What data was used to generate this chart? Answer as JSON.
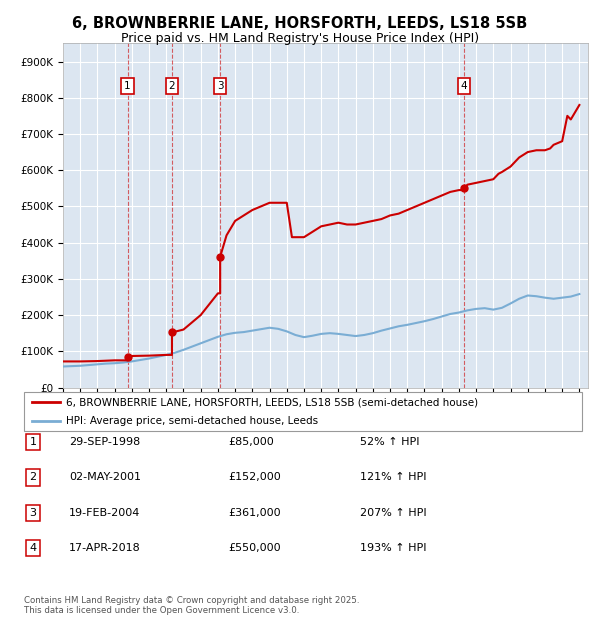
{
  "title": "6, BROWNBERRIE LANE, HORSFORTH, LEEDS, LS18 5SB",
  "subtitle": "Price paid vs. HM Land Registry's House Price Index (HPI)",
  "title_fontsize": 10.5,
  "subtitle_fontsize": 9,
  "ylim": [
    0,
    950000
  ],
  "yticks": [
    0,
    100000,
    200000,
    300000,
    400000,
    500000,
    600000,
    700000,
    800000,
    900000
  ],
  "ytick_labels": [
    "£0",
    "£100K",
    "£200K",
    "£300K",
    "£400K",
    "£500K",
    "£600K",
    "£700K",
    "£800K",
    "£900K"
  ],
  "xlim_start": 1995.0,
  "xlim_end": 2025.5,
  "plot_bg_color": "#dce6f1",
  "grid_color": "#ffffff",
  "sale_points": [
    {
      "year": 1998.75,
      "price": 85000,
      "label": "1"
    },
    {
      "year": 2001.33,
      "price": 152000,
      "label": "2"
    },
    {
      "year": 2004.13,
      "price": 361000,
      "label": "3"
    },
    {
      "year": 2018.29,
      "price": 550000,
      "label": "4"
    }
  ],
  "property_line_color": "#cc0000",
  "hpi_line_color": "#7aadd4",
  "legend_label_property": "6, BROWNBERRIE LANE, HORSFORTH, LEEDS, LS18 5SB (semi-detached house)",
  "legend_label_hpi": "HPI: Average price, semi-detached house, Leeds",
  "table_data": [
    {
      "num": "1",
      "date": "29-SEP-1998",
      "price": "£85,000",
      "pct": "52% ↑ HPI"
    },
    {
      "num": "2",
      "date": "02-MAY-2001",
      "price": "£152,000",
      "pct": "121% ↑ HPI"
    },
    {
      "num": "3",
      "date": "19-FEB-2004",
      "price": "£361,000",
      "pct": "207% ↑ HPI"
    },
    {
      "num": "4",
      "date": "17-APR-2018",
      "price": "£550,000",
      "pct": "193% ↑ HPI"
    }
  ],
  "footnote": "Contains HM Land Registry data © Crown copyright and database right 2025.\nThis data is licensed under the Open Government Licence v3.0.",
  "hpi_data_x": [
    1995.0,
    1995.5,
    1996.0,
    1996.5,
    1997.0,
    1997.5,
    1998.0,
    1998.5,
    1999.0,
    1999.5,
    2000.0,
    2000.5,
    2001.0,
    2001.5,
    2002.0,
    2002.5,
    2003.0,
    2003.5,
    2004.0,
    2004.5,
    2005.0,
    2005.5,
    2006.0,
    2006.5,
    2007.0,
    2007.5,
    2008.0,
    2008.5,
    2009.0,
    2009.5,
    2010.0,
    2010.5,
    2011.0,
    2011.5,
    2012.0,
    2012.5,
    2013.0,
    2013.5,
    2014.0,
    2014.5,
    2015.0,
    2015.5,
    2016.0,
    2016.5,
    2017.0,
    2017.5,
    2018.0,
    2018.5,
    2019.0,
    2019.5,
    2020.0,
    2020.5,
    2021.0,
    2021.5,
    2022.0,
    2022.5,
    2023.0,
    2023.5,
    2024.0,
    2024.5,
    2025.0
  ],
  "hpi_data_y": [
    58000,
    59000,
    60000,
    62000,
    64000,
    66000,
    67000,
    69000,
    72000,
    76000,
    80000,
    85000,
    90000,
    96000,
    104000,
    113000,
    122000,
    131000,
    140000,
    147000,
    151000,
    153000,
    157000,
    161000,
    165000,
    162000,
    155000,
    145000,
    139000,
    143000,
    148000,
    150000,
    148000,
    145000,
    142000,
    145000,
    150000,
    157000,
    163000,
    169000,
    173000,
    178000,
    183000,
    189000,
    196000,
    203000,
    207000,
    213000,
    217000,
    219000,
    215000,
    220000,
    232000,
    245000,
    254000,
    252000,
    248000,
    245000,
    248000,
    251000,
    258000
  ],
  "property_data_x": [
    1995.0,
    1996.0,
    1997.0,
    1998.0,
    1998.75,
    1998.75,
    1999.0,
    2000.0,
    2001.0,
    2001.33,
    2001.33,
    2002.0,
    2003.0,
    2004.0,
    2004.13,
    2004.13,
    2004.5,
    2005.0,
    2006.0,
    2007.0,
    2008.0,
    2008.3,
    2009.0,
    2009.5,
    2010.0,
    2010.5,
    2011.0,
    2011.5,
    2012.0,
    2012.5,
    2013.0,
    2013.5,
    2014.0,
    2014.5,
    2015.0,
    2015.5,
    2016.0,
    2016.5,
    2017.0,
    2017.5,
    2018.0,
    2018.29,
    2018.29,
    2018.5,
    2019.0,
    2019.5,
    2020.0,
    2020.3,
    2020.5,
    2021.0,
    2021.5,
    2022.0,
    2022.5,
    2023.0,
    2023.3,
    2023.5,
    2024.0,
    2024.3,
    2024.5,
    2025.0
  ],
  "property_data_y": [
    72000,
    72000,
    73000,
    75000,
    75000,
    85000,
    87000,
    88000,
    90000,
    90000,
    152000,
    160000,
    200000,
    260000,
    260000,
    361000,
    420000,
    460000,
    490000,
    510000,
    510000,
    415000,
    415000,
    430000,
    445000,
    450000,
    455000,
    450000,
    450000,
    455000,
    460000,
    465000,
    475000,
    480000,
    490000,
    500000,
    510000,
    520000,
    530000,
    540000,
    545000,
    545000,
    550000,
    560000,
    565000,
    570000,
    575000,
    590000,
    595000,
    610000,
    635000,
    650000,
    655000,
    655000,
    660000,
    670000,
    680000,
    750000,
    740000,
    780000
  ]
}
